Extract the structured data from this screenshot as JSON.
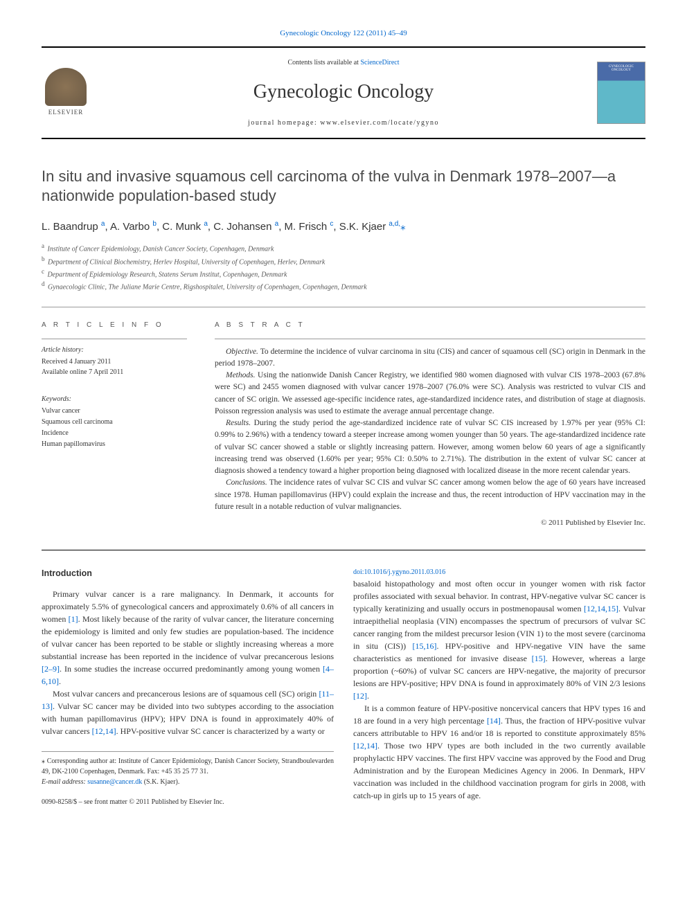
{
  "journal_ref": "Gynecologic Oncology 122 (2011) 45–49",
  "header": {
    "contents_prefix": "Contents lists available at ",
    "contents_link": "ScienceDirect",
    "journal_title": "Gynecologic Oncology",
    "homepage_prefix": "journal homepage: ",
    "homepage_url": "www.elsevier.com/locate/ygyno",
    "publisher": "ELSEVIER"
  },
  "article": {
    "title": "In situ and invasive squamous cell carcinoma of the vulva in Denmark 1978–2007—a nationwide population-based study",
    "authors_html": "L. Baandrup <sup>a</sup>, A. Varbo <sup>b</sup>, C. Munk <sup>a</sup>, C. Johansen <sup>a</sup>, M. Frisch <sup>c</sup>, S.K. Kjaer <sup>a,d,</sup><span class='star'>⁎</span>",
    "affiliations": [
      {
        "sup": "a",
        "text": "Institute of Cancer Epidemiology, Danish Cancer Society, Copenhagen, Denmark"
      },
      {
        "sup": "b",
        "text": "Department of Clinical Biochemistry, Herlev Hospital, University of Copenhagen, Herlev, Denmark"
      },
      {
        "sup": "c",
        "text": "Department of Epidemiology Research, Statens Serum Institut, Copenhagen, Denmark"
      },
      {
        "sup": "d",
        "text": "Gynaecologic Clinic, The Juliane Marie Centre, Rigshospitalet, University of Copenhagen, Copenhagen, Denmark"
      }
    ]
  },
  "info": {
    "label": "A R T I C L E   I N F O",
    "history_heading": "Article history:",
    "received": "Received 4 January 2011",
    "online": "Available online 7 April 2011",
    "keywords_heading": "Keywords:",
    "keywords": [
      "Vulvar cancer",
      "Squamous cell carcinoma",
      "Incidence",
      "Human papillomavirus"
    ]
  },
  "abstract": {
    "label": "A B S T R A C T",
    "paragraphs": [
      {
        "lead": "Objective.",
        "text": " To determine the incidence of vulvar carcinoma in situ (CIS) and cancer of squamous cell (SC) origin in Denmark in the period 1978–2007."
      },
      {
        "lead": "Methods.",
        "text": " Using the nationwide Danish Cancer Registry, we identified 980 women diagnosed with vulvar CIS 1978–2003 (67.8% were SC) and 2455 women diagnosed with vulvar cancer 1978–2007 (76.0% were SC). Analysis was restricted to vulvar CIS and cancer of SC origin. We assessed age-specific incidence rates, age-standardized incidence rates, and distribution of stage at diagnosis. Poisson regression analysis was used to estimate the average annual percentage change."
      },
      {
        "lead": "Results.",
        "text": " During the study period the age-standardized incidence rate of vulvar SC CIS increased by 1.97% per year (95% CI: 0.99% to 2.96%) with a tendency toward a steeper increase among women younger than 50 years. The age-standardized incidence rate of vulvar SC cancer showed a stable or slightly increasing pattern. However, among women below 60 years of age a significantly increasing trend was observed (1.60% per year; 95% CI: 0.50% to 2.71%). The distribution in the extent of vulvar SC cancer at diagnosis showed a tendency toward a higher proportion being diagnosed with localized disease in the more recent calendar years."
      },
      {
        "lead": "Conclusions.",
        "text": " The incidence rates of vulvar SC CIS and vulvar SC cancer among women below the age of 60 years have increased since 1978. Human papillomavirus (HPV) could explain the increase and thus, the recent introduction of HPV vaccination may in the future result in a notable reduction of vulvar malignancies."
      }
    ],
    "copyright": "© 2011 Published by Elsevier Inc."
  },
  "body": {
    "intro_heading": "Introduction",
    "p1": "Primary vulvar cancer is a rare malignancy. In Denmark, it accounts for approximately 5.5% of gynecological cancers and approximately 0.6% of all cancers in women [1]. Most likely because of the rarity of vulvar cancer, the literature concerning the epidemiology is limited and only few studies are population-based. The incidence of vulvar cancer has been reported to be stable or slightly increasing whereas a more substantial increase has been reported in the incidence of vulvar precancerous lesions [2–9]. In some studies the increase occurred predominantly among young women [4–6,10].",
    "p2": "Most vulvar cancers and precancerous lesions are of squamous cell (SC) origin [11–13]. Vulvar SC cancer may be divided into two subtypes according to the association with human papillomavirus (HPV); HPV DNA is found in approximately 40% of vulvar cancers [12,14]. HPV-positive vulvar SC cancer is characterized by a warty or",
    "p3": "basaloid histopathology and most often occur in younger women with risk factor profiles associated with sexual behavior. In contrast, HPV-negative vulvar SC cancer is typically keratinizing and usually occurs in postmenopausal women [12,14,15]. Vulvar intraepithelial neoplasia (VIN) encompasses the spectrum of precursors of vulvar SC cancer ranging from the mildest precursor lesion (VIN 1) to the most severe (carcinoma in situ (CIS)) [15,16]. HPV-positive and HPV-negative VIN have the same characteristics as mentioned for invasive disease [15]. However, whereas a large proportion (~60%) of vulvar SC cancers are HPV-negative, the majority of precursor lesions are HPV-positive; HPV DNA is found in approximately 80% of VIN 2/3 lesions [12].",
    "p4": "It is a common feature of HPV-positive noncervical cancers that HPV types 16 and 18 are found in a very high percentage [14]. Thus, the fraction of HPV-positive vulvar cancers attributable to HPV 16 and/or 18 is reported to constitute approximately 85% [12,14]. Those two HPV types are both included in the two currently available prophylactic HPV vaccines. The first HPV vaccine was approved by the Food and Drug Administration and by the European Medicines Agency in 2006. In Denmark, HPV vaccination was included in the childhood vaccination program for girls in 2008, with catch-up in girls up to 15 years of age."
  },
  "footnote": {
    "corresponding": "⁎ Corresponding author at: Institute of Cancer Epidemiology, Danish Cancer Society, Strandboulevarden 49, DK-2100 Copenhagen, Denmark. Fax: +45 35 25 77 31.",
    "email_label": "E-mail address: ",
    "email": "susanne@cancer.dk",
    "email_who": " (S.K. Kjaer)."
  },
  "doi": {
    "front_matter": "0090-8258/$ – see front matter © 2011 Published by Elsevier Inc.",
    "doi_line": "doi:10.1016/j.ygyno.2011.03.016"
  },
  "refs": {
    "r1": "[1]",
    "r2_9": "[2–9]",
    "r4_6_10": "[4–6,10]",
    "r11_13": "[11–13]",
    "r12_14": "[12,14]",
    "r12_14_15": "[12,14,15]",
    "r15_16": "[15,16]",
    "r15": "[15]",
    "r12": "[12]",
    "r14": "[14]"
  }
}
